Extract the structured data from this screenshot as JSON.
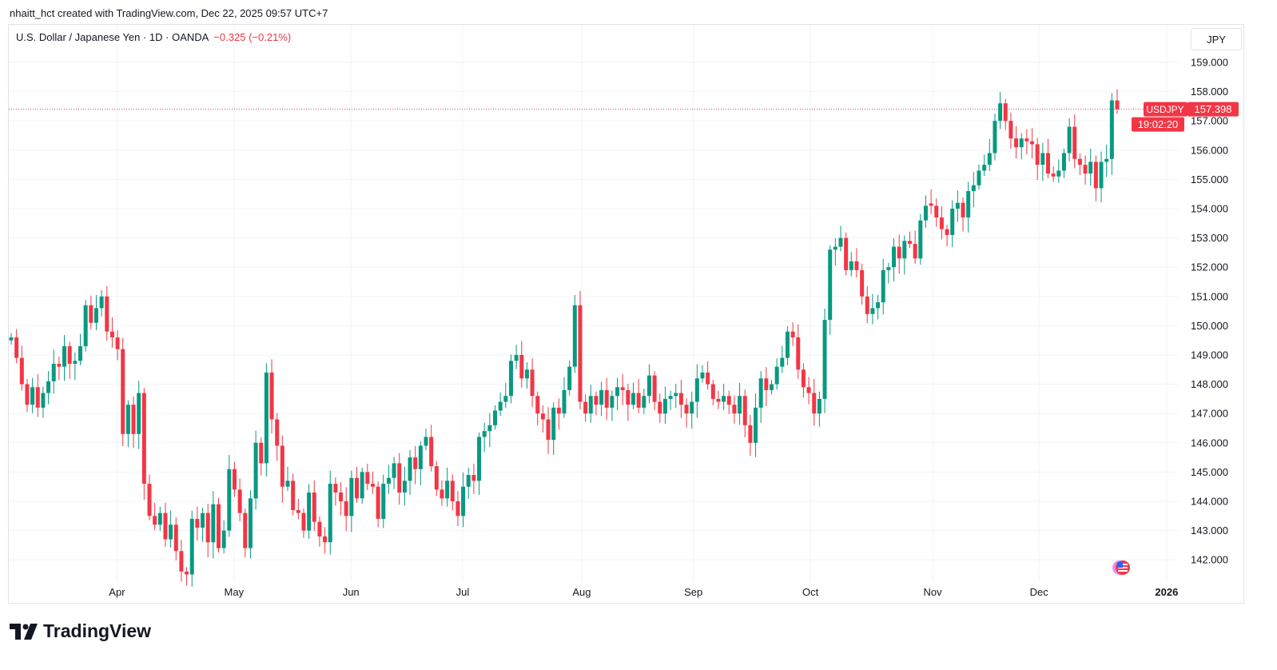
{
  "header": {
    "attribution": "nhaitt_hct created with TradingView.com, Dec 22, 2025 09:57 UTC+7"
  },
  "legend": {
    "symbol": "U.S. Dollar / Japanese Yen · 1D · OANDA",
    "change": "−0.325 (−0.21%)"
  },
  "currency_button": "JPY",
  "price_tag": {
    "symbol": "USDJPY",
    "price": "157.398",
    "countdown": "19:02:20"
  },
  "brand": "TradingView",
  "colors": {
    "up": "#089981",
    "down": "#f23645",
    "grid": "#f0f3fa"
  },
  "chart_data": {
    "type": "candlestick",
    "title": "U.S. Dollar / Japanese Yen · 1D · OANDA",
    "ylabel": "JPY",
    "ylim": [
      141.2,
      159.8
    ],
    "y_ticks": [
      "142.000",
      "143.000",
      "144.000",
      "145.000",
      "146.000",
      "147.000",
      "148.000",
      "149.000",
      "150.000",
      "151.000",
      "152.000",
      "153.000",
      "154.000",
      "155.000",
      "156.000",
      "157.000",
      "158.000",
      "159.000"
    ],
    "x_labels": [
      {
        "label": "Apr",
        "index": 19
      },
      {
        "label": "May",
        "index": 41
      },
      {
        "label": "Jun",
        "index": 63
      },
      {
        "label": "Jul",
        "index": 84
      },
      {
        "label": "Aug",
        "index": 107
      },
      {
        "label": "Sep",
        "index": 128
      },
      {
        "label": "Oct",
        "index": 150
      },
      {
        "label": "Nov",
        "index": 173
      },
      {
        "label": "Dec",
        "index": 193
      },
      {
        "label": "2026",
        "index": 217
      }
    ],
    "first_open": 149.5,
    "close": [
      149.6,
      148.9,
      148.0,
      147.3,
      147.9,
      147.2,
      147.7,
      148.1,
      148.7,
      148.6,
      149.3,
      148.7,
      148.8,
      149.3,
      150.7,
      150.1,
      150.6,
      151.0,
      149.8,
      149.6,
      149.2,
      146.3,
      147.3,
      146.3,
      147.7,
      144.6,
      143.5,
      143.2,
      143.6,
      142.7,
      143.2,
      142.3,
      141.6,
      141.5,
      143.4,
      143.1,
      143.6,
      142.6,
      143.9,
      142.4,
      143.0,
      145.1,
      144.4,
      143.6,
      142.4,
      144.1,
      146.0,
      145.3,
      148.4,
      146.8,
      145.9,
      144.5,
      144.7,
      143.7,
      143.6,
      143.0,
      144.3,
      143.3,
      142.8,
      142.6,
      144.6,
      144.3,
      144.0,
      143.5,
      144.8,
      144.1,
      145.0,
      144.6,
      144.5,
      143.4,
      144.6,
      144.8,
      145.3,
      144.3,
      144.7,
      145.5,
      145.1,
      145.9,
      146.2,
      145.2,
      144.4,
      144.1,
      144.7,
      144.0,
      143.5,
      144.5,
      144.9,
      144.7,
      146.2,
      146.4,
      146.6,
      147.1,
      147.4,
      147.6,
      148.8,
      149.0,
      148.2,
      148.5,
      147.6,
      147.0,
      146.8,
      146.1,
      147.2,
      147.0,
      147.8,
      148.6,
      150.7,
      147.4,
      147.0,
      147.6,
      147.3,
      147.8,
      147.2,
      147.6,
      147.9,
      147.8,
      147.3,
      147.7,
      147.2,
      147.6,
      148.3,
      147.4,
      147.0,
      147.5,
      147.6,
      147.7,
      147.3,
      147.0,
      147.4,
      148.2,
      148.4,
      148.0,
      147.5,
      147.4,
      147.6,
      147.3,
      147.0,
      147.6,
      146.6,
      146.0,
      147.2,
      148.2,
      147.8,
      148.0,
      148.6,
      148.9,
      149.8,
      149.6,
      148.5,
      147.9,
      147.7,
      147.0,
      147.5,
      150.2,
      152.6,
      152.7,
      153.0,
      151.9,
      152.2,
      151.9,
      151.0,
      150.4,
      150.6,
      150.8,
      151.9,
      152.0,
      152.7,
      152.3,
      152.9,
      152.8,
      152.3,
      153.6,
      154.1,
      154.1,
      153.7,
      153.3,
      153.1,
      154.0,
      154.2,
      153.7,
      154.6,
      154.8,
      155.3,
      155.5,
      155.9,
      157.0,
      157.6,
      157.0,
      156.4,
      156.1,
      156.4,
      156.3,
      156.2,
      155.5,
      155.9,
      155.2,
      155.1,
      155.3,
      155.9,
      156.8,
      155.7,
      155.5,
      155.2,
      155.6,
      154.7,
      155.6,
      155.7,
      157.7,
      157.398
    ],
    "last_price": 157.398
  }
}
